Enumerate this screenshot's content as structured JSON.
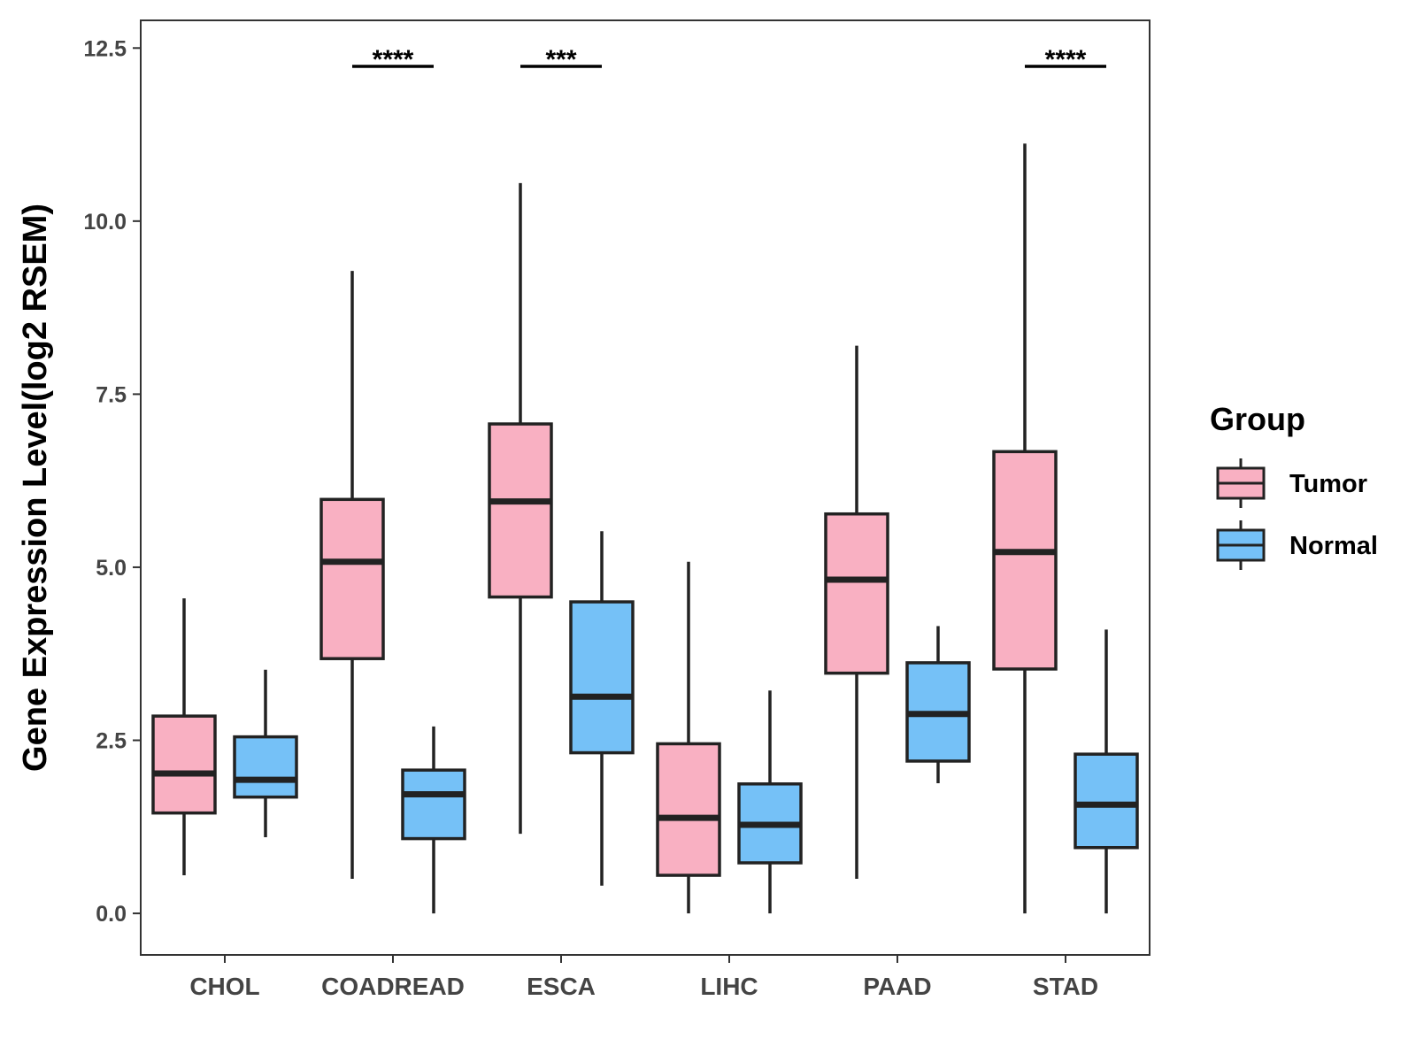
{
  "chart_data": {
    "type": "boxplot",
    "title": "",
    "xlabel": "",
    "ylabel": "Gene Expression Level(log2 RSEM)",
    "ylim": [
      -0.6,
      12.9
    ],
    "yticks": [
      "0.0",
      "2.5",
      "5.0",
      "7.5",
      "10.0",
      "12.5"
    ],
    "categories": [
      "CHOL",
      "COADREAD",
      "ESCA",
      "LIHC",
      "PAAD",
      "STAD"
    ],
    "legend": {
      "title": "Group",
      "position": "right",
      "entries": [
        "Tumor",
        "Normal"
      ]
    },
    "series": [
      {
        "name": "Tumor",
        "color": "#F9B0C2",
        "boxes": [
          {
            "min": 0.55,
            "q1": 1.45,
            "median": 2.02,
            "q3": 2.85,
            "max": 4.55
          },
          {
            "min": 0.5,
            "q1": 3.68,
            "median": 5.08,
            "q3": 5.98,
            "max": 9.28
          },
          {
            "min": 1.15,
            "q1": 4.57,
            "median": 5.95,
            "q3": 7.07,
            "max": 10.55
          },
          {
            "min": 0.0,
            "q1": 0.55,
            "median": 1.38,
            "q3": 2.45,
            "max": 5.08
          },
          {
            "min": 0.5,
            "q1": 3.47,
            "median": 4.82,
            "q3": 5.77,
            "max": 8.2
          },
          {
            "min": 0.0,
            "q1": 3.53,
            "median": 5.22,
            "q3": 6.67,
            "max": 11.12
          }
        ]
      },
      {
        "name": "Normal",
        "color": "#75C1F7",
        "boxes": [
          {
            "min": 1.1,
            "q1": 1.68,
            "median": 1.93,
            "q3": 2.55,
            "max": 3.52
          },
          {
            "min": 0.0,
            "q1": 1.08,
            "median": 1.72,
            "q3": 2.07,
            "max": 2.7
          },
          {
            "min": 0.4,
            "q1": 2.32,
            "median": 3.13,
            "q3": 4.5,
            "max": 5.52
          },
          {
            "min": 0.0,
            "q1": 0.73,
            "median": 1.28,
            "q3": 1.87,
            "max": 3.22
          },
          {
            "min": 1.88,
            "q1": 2.2,
            "median": 2.88,
            "q3": 3.62,
            "max": 4.15
          },
          {
            "min": 0.0,
            "q1": 0.95,
            "median": 1.57,
            "q3": 2.3,
            "max": 4.1
          }
        ]
      }
    ],
    "significance": [
      {
        "category": "CHOL",
        "label": ""
      },
      {
        "category": "COADREAD",
        "label": "****"
      },
      {
        "category": "ESCA",
        "label": "***"
      },
      {
        "category": "LIHC",
        "label": ""
      },
      {
        "category": "PAAD",
        "label": ""
      },
      {
        "category": "STAD",
        "label": "****"
      }
    ]
  }
}
